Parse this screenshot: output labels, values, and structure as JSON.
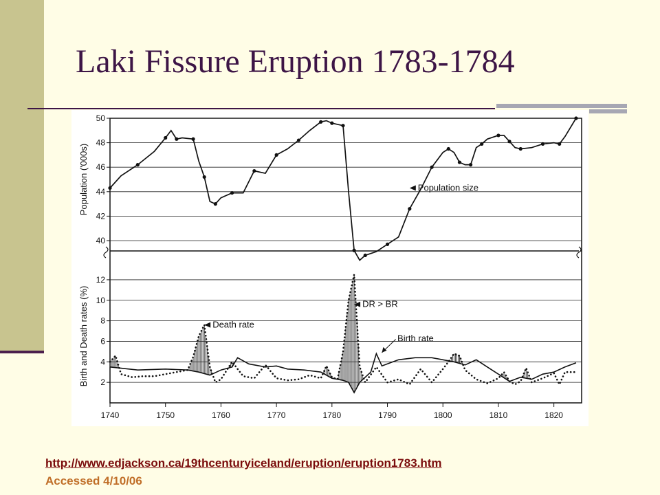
{
  "slide": {
    "title": "Laki Fissure Eruption 1783-1784",
    "source_url": "http://www.edjackson.ca/19thcenturyiceland/eruption/eruption1783.htm",
    "accessed": "Accessed 4/10/06"
  },
  "colors": {
    "background": "#fffde6",
    "left_bar": "#c8c48f",
    "title": "#3d1546",
    "link": "#7a0b0b",
    "accessed": "#c06e28"
  },
  "chart_data": [
    {
      "type": "line",
      "xlim": [
        1740,
        1825
      ],
      "ylim": [
        40,
        50
      ],
      "ylabel": "Population ('000s)",
      "yticks": [
        40,
        42,
        44,
        46,
        48,
        50
      ],
      "grid": true,
      "series": [
        {
          "name": "Population size",
          "x": [
            1740,
            1742,
            1745,
            1748,
            1750,
            1751,
            1752,
            1753,
            1755,
            1756,
            1757,
            1758,
            1759,
            1760,
            1762,
            1764,
            1766,
            1768,
            1770,
            1772,
            1774,
            1776,
            1778,
            1779,
            1780,
            1781,
            1782,
            1783,
            1784,
            1785,
            1786,
            1788,
            1790,
            1792,
            1794,
            1796,
            1798,
            1800,
            1801,
            1802,
            1803,
            1804,
            1805,
            1806,
            1807,
            1808,
            1810,
            1811,
            1812,
            1813,
            1814,
            1816,
            1818,
            1820,
            1821,
            1822,
            1824
          ],
          "values": [
            44.3,
            45.3,
            46.2,
            47.3,
            48.4,
            49.0,
            48.3,
            48.4,
            48.3,
            46.5,
            45.2,
            43.2,
            43.0,
            43.5,
            43.9,
            43.9,
            45.7,
            45.5,
            47.0,
            47.5,
            48.2,
            49.0,
            49.7,
            49.8,
            49.6,
            49.5,
            49.4,
            44.0,
            39.2,
            38.4,
            38.8,
            39.1,
            39.7,
            40.3,
            42.6,
            44.2,
            46.0,
            47.2,
            47.5,
            47.2,
            46.4,
            46.2,
            46.2,
            47.6,
            47.9,
            48.3,
            48.6,
            48.6,
            48.1,
            47.6,
            47.5,
            47.6,
            47.9,
            48.0,
            47.9,
            48.5,
            50.0
          ]
        }
      ],
      "annotations": [
        "Population size"
      ]
    },
    {
      "type": "line",
      "xlim": [
        1740,
        1825
      ],
      "ylim": [
        0,
        13
      ],
      "ylabel": "Birth and Death rates (%)",
      "yticks": [
        2,
        4,
        6,
        8,
        10,
        12
      ],
      "xticks": [
        1740,
        1750,
        1760,
        1770,
        1780,
        1790,
        1800,
        1810,
        1820
      ],
      "grid": true,
      "series": [
        {
          "name": "Death rate",
          "x": [
            1740,
            1741,
            1742,
            1744,
            1746,
            1748,
            1750,
            1752,
            1754,
            1755,
            1756,
            1757,
            1758,
            1759,
            1760,
            1762,
            1764,
            1766,
            1768,
            1770,
            1772,
            1774,
            1776,
            1778,
            1779,
            1780,
            1781,
            1782,
            1783,
            1784,
            1785,
            1786,
            1788,
            1790,
            1792,
            1794,
            1796,
            1798,
            1800,
            1801,
            1802,
            1803,
            1804,
            1806,
            1808,
            1810,
            1811,
            1812,
            1813,
            1814,
            1815,
            1816,
            1818,
            1820,
            1821,
            1822,
            1824
          ],
          "values": [
            4.0,
            4.6,
            2.8,
            2.5,
            2.6,
            2.6,
            2.8,
            3.0,
            3.2,
            4.5,
            6.5,
            7.6,
            3.5,
            2.0,
            2.3,
            4.0,
            2.6,
            2.4,
            3.7,
            2.4,
            2.2,
            2.3,
            2.7,
            2.4,
            3.6,
            2.5,
            2.3,
            5.0,
            10.0,
            12.5,
            3.5,
            2.0,
            3.5,
            2.0,
            2.3,
            1.8,
            3.3,
            2.0,
            3.3,
            4.0,
            4.8,
            4.6,
            3.2,
            2.3,
            1.9,
            2.4,
            3.0,
            2.1,
            1.8,
            2.1,
            3.4,
            2.0,
            2.4,
            2.9,
            1.8,
            3.0,
            3.0
          ]
        },
        {
          "name": "Birth rate",
          "x": [
            1740,
            1745,
            1750,
            1754,
            1756,
            1758,
            1760,
            1762,
            1763,
            1765,
            1768,
            1770,
            1772,
            1775,
            1778,
            1780,
            1782,
            1783,
            1784,
            1785,
            1787,
            1788,
            1789,
            1790,
            1792,
            1795,
            1798,
            1800,
            1802,
            1804,
            1806,
            1808,
            1810,
            1812,
            1814,
            1816,
            1818,
            1820,
            1822,
            1824
          ],
          "values": [
            3.5,
            3.2,
            3.3,
            3.2,
            3.0,
            2.7,
            3.2,
            3.5,
            4.4,
            3.8,
            3.5,
            3.6,
            3.3,
            3.2,
            3.0,
            2.4,
            2.2,
            2.0,
            1.0,
            2.0,
            3.0,
            4.8,
            3.6,
            3.8,
            4.2,
            4.4,
            4.4,
            4.2,
            4.0,
            3.7,
            4.2,
            3.5,
            2.8,
            2.1,
            2.5,
            2.3,
            2.8,
            3.0,
            3.5,
            3.9
          ]
        }
      ],
      "annotations": [
        "Death rate",
        "DR > BR",
        "Birth rate"
      ]
    }
  ]
}
